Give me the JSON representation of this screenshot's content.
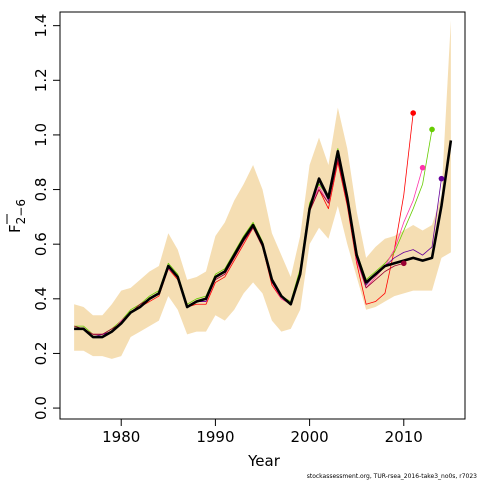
{
  "chart_data": {
    "type": "line",
    "xlabel": "Year",
    "ylabel_main": "F",
    "ylabel_sub": "2−6",
    "xlim": [
      1973.5,
      2016.5
    ],
    "ylim": [
      -0.04,
      1.45
    ],
    "x_ticks": [
      1980,
      1990,
      2000,
      2010
    ],
    "y_ticks": [
      0.0,
      0.2,
      0.4,
      0.6,
      0.8,
      1.0,
      1.2,
      1.4
    ],
    "y_tick_labels": [
      "0.0",
      "0.2",
      "0.4",
      "0.6",
      "0.8",
      "1.0",
      "1.2",
      "1.4"
    ],
    "caption": "stockassessment.org, TUR-rsea_2016-take3_no0s, r7023",
    "colors": {
      "band": "#f5deb3",
      "main": "#000000",
      "retro_red": "#ff0000",
      "retro_green": "#66cc00",
      "retro_pink": "#ff33aa",
      "retro_purple": "#660099",
      "retro_dark": "#990033"
    },
    "band": {
      "x": [
        1975,
        1976,
        1977,
        1978,
        1979,
        1980,
        1981,
        1982,
        1983,
        1984,
        1985,
        1986,
        1987,
        1988,
        1989,
        1990,
        1991,
        1992,
        1993,
        1994,
        1995,
        1996,
        1997,
        1998,
        1999,
        2000,
        2001,
        2002,
        2003,
        2004,
        2005,
        2006,
        2007,
        2008,
        2009,
        2010,
        2011,
        2012,
        2013,
        2014,
        2015
      ],
      "upper": [
        0.38,
        0.37,
        0.34,
        0.34,
        0.38,
        0.43,
        0.44,
        0.47,
        0.5,
        0.52,
        0.64,
        0.58,
        0.47,
        0.48,
        0.5,
        0.63,
        0.68,
        0.76,
        0.82,
        0.89,
        0.8,
        0.64,
        0.56,
        0.48,
        0.63,
        0.89,
        0.99,
        0.89,
        1.1,
        0.95,
        0.72,
        0.55,
        0.59,
        0.62,
        0.63,
        0.65,
        0.67,
        0.65,
        0.67,
        0.78,
        1.42
      ],
      "lower": [
        0.21,
        0.21,
        0.19,
        0.19,
        0.18,
        0.19,
        0.26,
        0.28,
        0.3,
        0.32,
        0.41,
        0.36,
        0.27,
        0.28,
        0.28,
        0.34,
        0.32,
        0.36,
        0.42,
        0.46,
        0.42,
        0.32,
        0.28,
        0.29,
        0.36,
        0.6,
        0.66,
        0.62,
        0.74,
        0.6,
        0.48,
        0.36,
        0.37,
        0.39,
        0.41,
        0.42,
        0.43,
        0.43,
        0.43,
        0.55,
        0.57
      ]
    },
    "series": [
      {
        "role": "main",
        "color": "#000000",
        "width": 2.6,
        "x": [
          1975,
          1976,
          1977,
          1978,
          1979,
          1980,
          1981,
          1982,
          1983,
          1984,
          1985,
          1986,
          1987,
          1988,
          1989,
          1990,
          1991,
          1992,
          1993,
          1994,
          1995,
          1996,
          1997,
          1998,
          1999,
          2000,
          2001,
          2002,
          2003,
          2004,
          2005,
          2006,
          2007,
          2008,
          2009,
          2010,
          2011,
          2012,
          2013,
          2014,
          2015
        ],
        "y": [
          0.29,
          0.29,
          0.26,
          0.26,
          0.28,
          0.31,
          0.35,
          0.37,
          0.4,
          0.42,
          0.52,
          0.48,
          0.37,
          0.39,
          0.4,
          0.48,
          0.5,
          0.56,
          0.62,
          0.67,
          0.6,
          0.47,
          0.41,
          0.38,
          0.49,
          0.73,
          0.84,
          0.77,
          0.94,
          0.77,
          0.56,
          0.46,
          0.49,
          0.52,
          0.53,
          0.54,
          0.55,
          0.54,
          0.55,
          0.74,
          0.98
        ]
      },
      {
        "role": "retro",
        "color": "#ff0000",
        "width": 0.8,
        "x": [
          1975,
          1976,
          1977,
          1978,
          1979,
          1980,
          1981,
          1982,
          1983,
          1984,
          1985,
          1986,
          1987,
          1988,
          1989,
          1990,
          1991,
          1992,
          1993,
          1994,
          1995,
          1996,
          1997,
          1998,
          1999,
          2000,
          2001,
          2002,
          2003,
          2004,
          2005,
          2006,
          2007,
          2008,
          2009,
          2010,
          2011
        ],
        "y": [
          0.29,
          0.29,
          0.27,
          0.27,
          0.28,
          0.31,
          0.35,
          0.37,
          0.39,
          0.41,
          0.51,
          0.47,
          0.37,
          0.38,
          0.38,
          0.46,
          0.48,
          0.54,
          0.6,
          0.66,
          0.59,
          0.45,
          0.4,
          0.38,
          0.49,
          0.72,
          0.8,
          0.73,
          0.9,
          0.74,
          0.53,
          0.38,
          0.39,
          0.42,
          0.58,
          0.78,
          1.08
        ],
        "end_marker": true
      },
      {
        "role": "retro",
        "color": "#66cc00",
        "width": 0.8,
        "x": [
          1975,
          1976,
          1977,
          1978,
          1979,
          1980,
          1981,
          1982,
          1983,
          1984,
          1985,
          1986,
          1987,
          1988,
          1989,
          1990,
          1991,
          1992,
          1993,
          1994,
          1995,
          1996,
          1997,
          1998,
          1999,
          2000,
          2001,
          2002,
          2003,
          2004,
          2005,
          2006,
          2007,
          2008,
          2009,
          2010,
          2011,
          2012,
          2013
        ],
        "y": [
          0.3,
          0.3,
          0.27,
          0.27,
          0.29,
          0.32,
          0.36,
          0.38,
          0.41,
          0.43,
          0.53,
          0.49,
          0.38,
          0.4,
          0.41,
          0.49,
          0.51,
          0.57,
          0.63,
          0.68,
          0.61,
          0.47,
          0.41,
          0.39,
          0.51,
          0.75,
          0.82,
          0.77,
          0.95,
          0.78,
          0.57,
          0.47,
          0.5,
          0.53,
          0.57,
          0.65,
          0.73,
          0.82,
          1.02
        ],
        "end_marker": true
      },
      {
        "role": "retro",
        "color": "#ff33aa",
        "width": 0.8,
        "x": [
          1975,
          1976,
          1977,
          1978,
          1979,
          1980,
          1981,
          1982,
          1983,
          1984,
          1985,
          1986,
          1987,
          1988,
          1989,
          1990,
          1991,
          1992,
          1993,
          1994,
          1995,
          1996,
          1997,
          1998,
          1999,
          2000,
          2001,
          2002,
          2003,
          2004,
          2005,
          2006,
          2007,
          2008,
          2009,
          2010,
          2011,
          2012
        ],
        "y": [
          0.29,
          0.29,
          0.27,
          0.27,
          0.28,
          0.32,
          0.35,
          0.37,
          0.4,
          0.42,
          0.51,
          0.48,
          0.37,
          0.39,
          0.39,
          0.47,
          0.49,
          0.55,
          0.61,
          0.66,
          0.6,
          0.46,
          0.4,
          0.38,
          0.5,
          0.73,
          0.81,
          0.75,
          0.92,
          0.75,
          0.54,
          0.44,
          0.48,
          0.52,
          0.58,
          0.68,
          0.76,
          0.88
        ],
        "end_marker": true
      },
      {
        "role": "retro",
        "color": "#660099",
        "width": 0.8,
        "x": [
          1975,
          1976,
          1977,
          1978,
          1979,
          1980,
          1981,
          1982,
          1983,
          1984,
          1985,
          1986,
          1987,
          1988,
          1989,
          1990,
          1991,
          1992,
          1993,
          1994,
          1995,
          1996,
          1997,
          1998,
          1999,
          2000,
          2001,
          2002,
          2003,
          2004,
          2005,
          2006,
          2007,
          2008,
          2009,
          2010,
          2011,
          2012,
          2013,
          2014
        ],
        "y": [
          0.29,
          0.29,
          0.26,
          0.27,
          0.28,
          0.31,
          0.35,
          0.37,
          0.4,
          0.42,
          0.52,
          0.48,
          0.37,
          0.39,
          0.39,
          0.48,
          0.5,
          0.56,
          0.62,
          0.67,
          0.6,
          0.47,
          0.41,
          0.38,
          0.5,
          0.73,
          0.83,
          0.76,
          0.93,
          0.76,
          0.55,
          0.45,
          0.49,
          0.52,
          0.55,
          0.57,
          0.58,
          0.56,
          0.59,
          0.84
        ],
        "end_marker": true
      },
      {
        "role": "retro",
        "color": "#990033",
        "width": 0.8,
        "x": [
          1975,
          1976,
          1977,
          1978,
          1979,
          1980,
          1981,
          1982,
          1983,
          1984,
          1985,
          1986,
          1987,
          1988,
          1989,
          1990,
          1991,
          1992,
          1993,
          1994,
          1995,
          1996,
          1997,
          1998,
          1999,
          2000,
          2001,
          2002,
          2003,
          2004,
          2005,
          2006,
          2007,
          2008,
          2009,
          2010
        ],
        "y": [
          0.3,
          0.29,
          0.27,
          0.27,
          0.29,
          0.31,
          0.35,
          0.38,
          0.4,
          0.42,
          0.52,
          0.48,
          0.37,
          0.39,
          0.4,
          0.47,
          0.49,
          0.55,
          0.61,
          0.66,
          0.59,
          0.46,
          0.41,
          0.38,
          0.49,
          0.72,
          0.8,
          0.75,
          0.91,
          0.75,
          0.55,
          0.44,
          0.47,
          0.5,
          0.52,
          0.53
        ],
        "end_marker": true
      }
    ]
  }
}
